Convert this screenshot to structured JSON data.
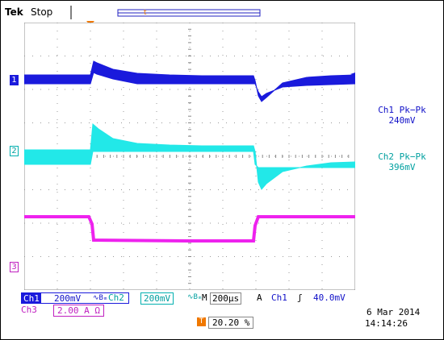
{
  "header": {
    "brand": "Tek",
    "status": "Stop"
  },
  "markers": {
    "trigger": "T",
    "ch1": "1",
    "ch2": "2",
    "ch3": "3"
  },
  "measurements": [
    {
      "title": "Ch1 Pk−Pk",
      "value": "240mV",
      "color": "#1010c8"
    },
    {
      "title": "Ch2 Pk−Pk",
      "value": "396mV",
      "color": "#00a0a0"
    }
  ],
  "bottom": {
    "ch1": "Ch1",
    "ch1_scale": "200mV",
    "ch1_bw": "∿Bₘ",
    "ch2": "Ch2",
    "ch2_scale": "200mV",
    "ch2_bw": "∿Bₘ",
    "horiz_prefix": "M",
    "timebase": "200µs",
    "trig_mode": "A",
    "trig_src": "Ch1",
    "trig_slope": "ʃ",
    "trig_level": "40.0mV",
    "ch3": "Ch3",
    "ch3_scale": "2.00 A Ω",
    "trig_pos_icon": "T",
    "trig_pos": "20.20 %",
    "date": "6 Mar  2014",
    "time": "14:14:26"
  },
  "colors": {
    "ch1": "#1a1adc",
    "ch2": "#22e8e8",
    "ch3": "#ee22ee",
    "trigger": "#f07800"
  }
}
